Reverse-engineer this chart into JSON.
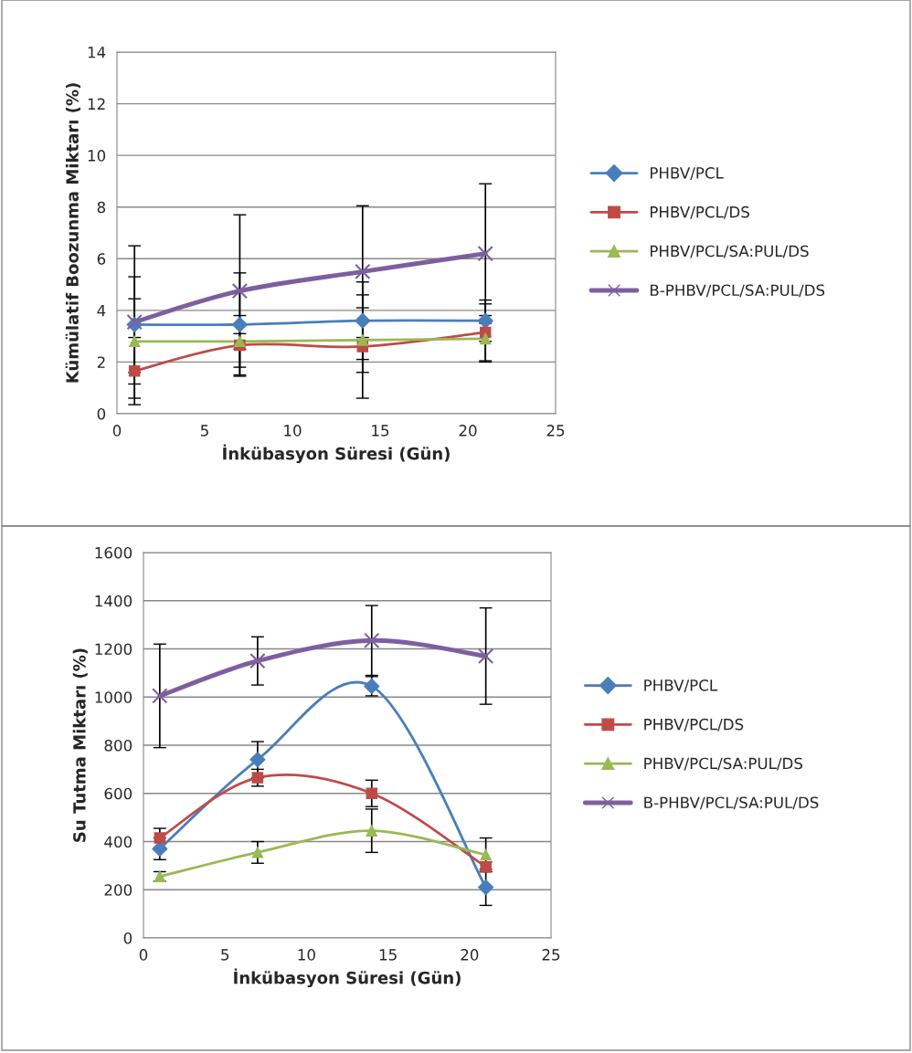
{
  "chart_data": [
    {
      "type": "line",
      "ylabel": "Kümülatif Boozunma Miktarı (%)",
      "xlabel": "İnkübasyon Süresi (Gün)",
      "x": [
        1,
        7,
        14,
        21
      ],
      "xlim": [
        0,
        25
      ],
      "xticks": [
        0,
        5,
        10,
        15,
        20,
        25
      ],
      "ylim": [
        0,
        14
      ],
      "yticks": [
        0,
        2,
        4,
        6,
        8,
        10,
        12,
        14
      ],
      "grid": "y",
      "legend": "right",
      "series": [
        {
          "name": "PHBV/PCL",
          "color": "#4a7ebb",
          "marker": "diamond",
          "values": [
            3.45,
            3.45,
            3.6,
            3.6
          ],
          "errors": [
            1.85,
            2.0,
            1.5,
            0.8
          ]
        },
        {
          "name": "PHBV/PCL/DS",
          "color": "#be4b48",
          "marker": "square",
          "values": [
            1.65,
            2.65,
            2.6,
            3.15
          ],
          "errors": [
            1.3,
            1.15,
            2.0,
            1.1
          ]
        },
        {
          "name": "PHBV/PCL/SA:PUL/DS",
          "color": "#98b954",
          "marker": "triangle",
          "values": [
            2.8,
            2.8,
            2.85,
            2.9
          ],
          "errors": [
            1.65,
            0.3,
            1.25,
            0.9
          ]
        },
        {
          "name": "B-PHBV/PCL/SA:PUL/DS",
          "color": "#7d5fa0",
          "marker": "cross",
          "values": [
            3.55,
            4.75,
            5.5,
            6.2
          ],
          "errors": [
            2.95,
            2.95,
            2.55,
            2.7
          ]
        }
      ]
    },
    {
      "type": "line",
      "ylabel": "Su Tutma Miktarı (%)",
      "xlabel": "İnkübasyon Süresi (Gün)",
      "x": [
        1,
        7,
        14,
        21
      ],
      "xlim": [
        0,
        25
      ],
      "xticks": [
        0,
        5,
        10,
        15,
        20,
        25
      ],
      "ylim": [
        0,
        1600
      ],
      "yticks": [
        0,
        200,
        400,
        600,
        800,
        1000,
        1200,
        1400,
        1600
      ],
      "grid": "y",
      "legend": "right",
      "series": [
        {
          "name": "PHBV/PCL",
          "color": "#4a7ebb",
          "marker": "diamond",
          "values": [
            370,
            740,
            1045,
            210
          ],
          "errors": [
            45,
            75,
            40,
            75
          ]
        },
        {
          "name": "PHBV/PCL/DS",
          "color": "#be4b48",
          "marker": "square",
          "values": [
            415,
            665,
            600,
            295
          ],
          "errors": [
            40,
            35,
            55,
            20
          ]
        },
        {
          "name": "PHBV/PCL/SA:PUL/DS",
          "color": "#98b954",
          "marker": "triangle",
          "values": [
            255,
            355,
            445,
            345
          ],
          "errors": [
            20,
            45,
            90,
            70
          ]
        },
        {
          "name": "B-PHBV/PCL/SA:PUL/DS",
          "color": "#7d5fa0",
          "marker": "cross",
          "values": [
            1005,
            1150,
            1235,
            1170
          ],
          "errors": [
            215,
            100,
            145,
            200
          ]
        }
      ]
    }
  ]
}
